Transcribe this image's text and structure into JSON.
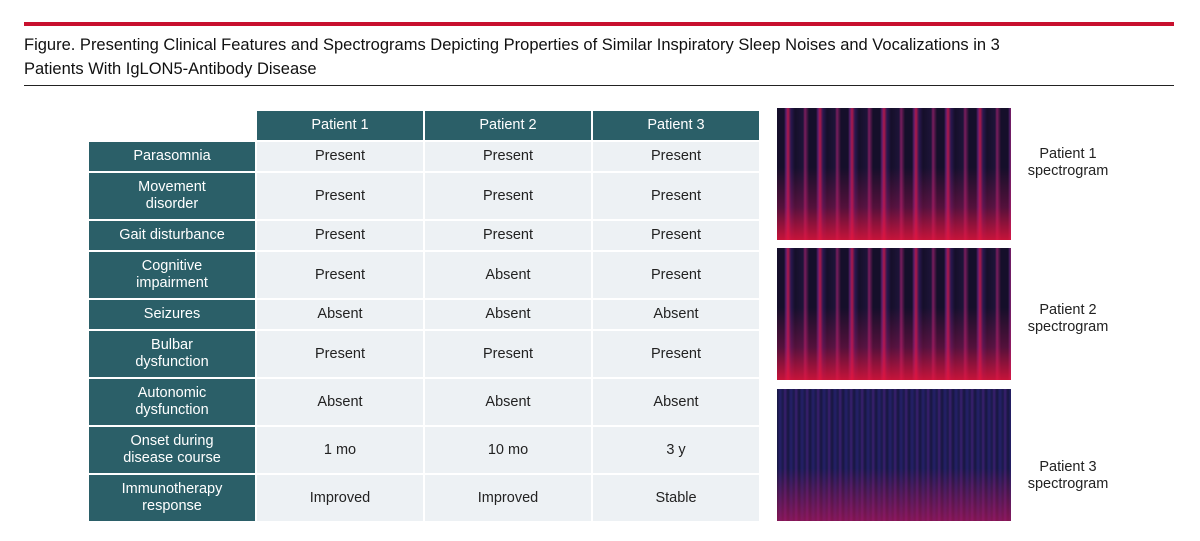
{
  "title": "Figure. Presenting Clinical Features and Spectrograms Depicting Properties of Similar Inspiratory Sleep Noises and Vocalizations in 3 Patients With IgLON5-Antibody Disease",
  "table": {
    "header": [
      "Patient 1",
      "Patient 2",
      "Patient 3"
    ],
    "rows": [
      {
        "label": [
          "Parasomnia"
        ],
        "values": [
          "Present",
          "Present",
          "Present"
        ]
      },
      {
        "label": [
          "Movement",
          "disorder"
        ],
        "values": [
          "Present",
          "Present",
          "Present"
        ]
      },
      {
        "label": [
          "Gait disturbance"
        ],
        "values": [
          "Present",
          "Present",
          "Present"
        ]
      },
      {
        "label": [
          "Cognitive",
          "impairment"
        ],
        "values": [
          "Present",
          "Absent",
          "Present"
        ]
      },
      {
        "label": [
          "Seizures"
        ],
        "values": [
          "Absent",
          "Absent",
          "Absent"
        ]
      },
      {
        "label": [
          "Bulbar",
          "dysfunction"
        ],
        "values": [
          "Present",
          "Present",
          "Present"
        ]
      },
      {
        "label": [
          "Autonomic",
          "dysfunction"
        ],
        "values": [
          "Absent",
          "Absent",
          "Absent"
        ]
      },
      {
        "label": [
          "Onset during",
          "disease course"
        ],
        "values": [
          "1 mo",
          "10 mo",
          "3 y"
        ]
      },
      {
        "label": [
          "Immunotherapy",
          "response"
        ],
        "values": [
          "Improved",
          "Improved",
          "Stable"
        ]
      }
    ]
  },
  "spectrograms": [
    {
      "label": [
        "Patient 1",
        "spectrogram"
      ]
    },
    {
      "label": [
        "Patient 2",
        "spectrogram"
      ]
    },
    {
      "label": [
        "Patient 3",
        "spectrogram"
      ]
    }
  ]
}
